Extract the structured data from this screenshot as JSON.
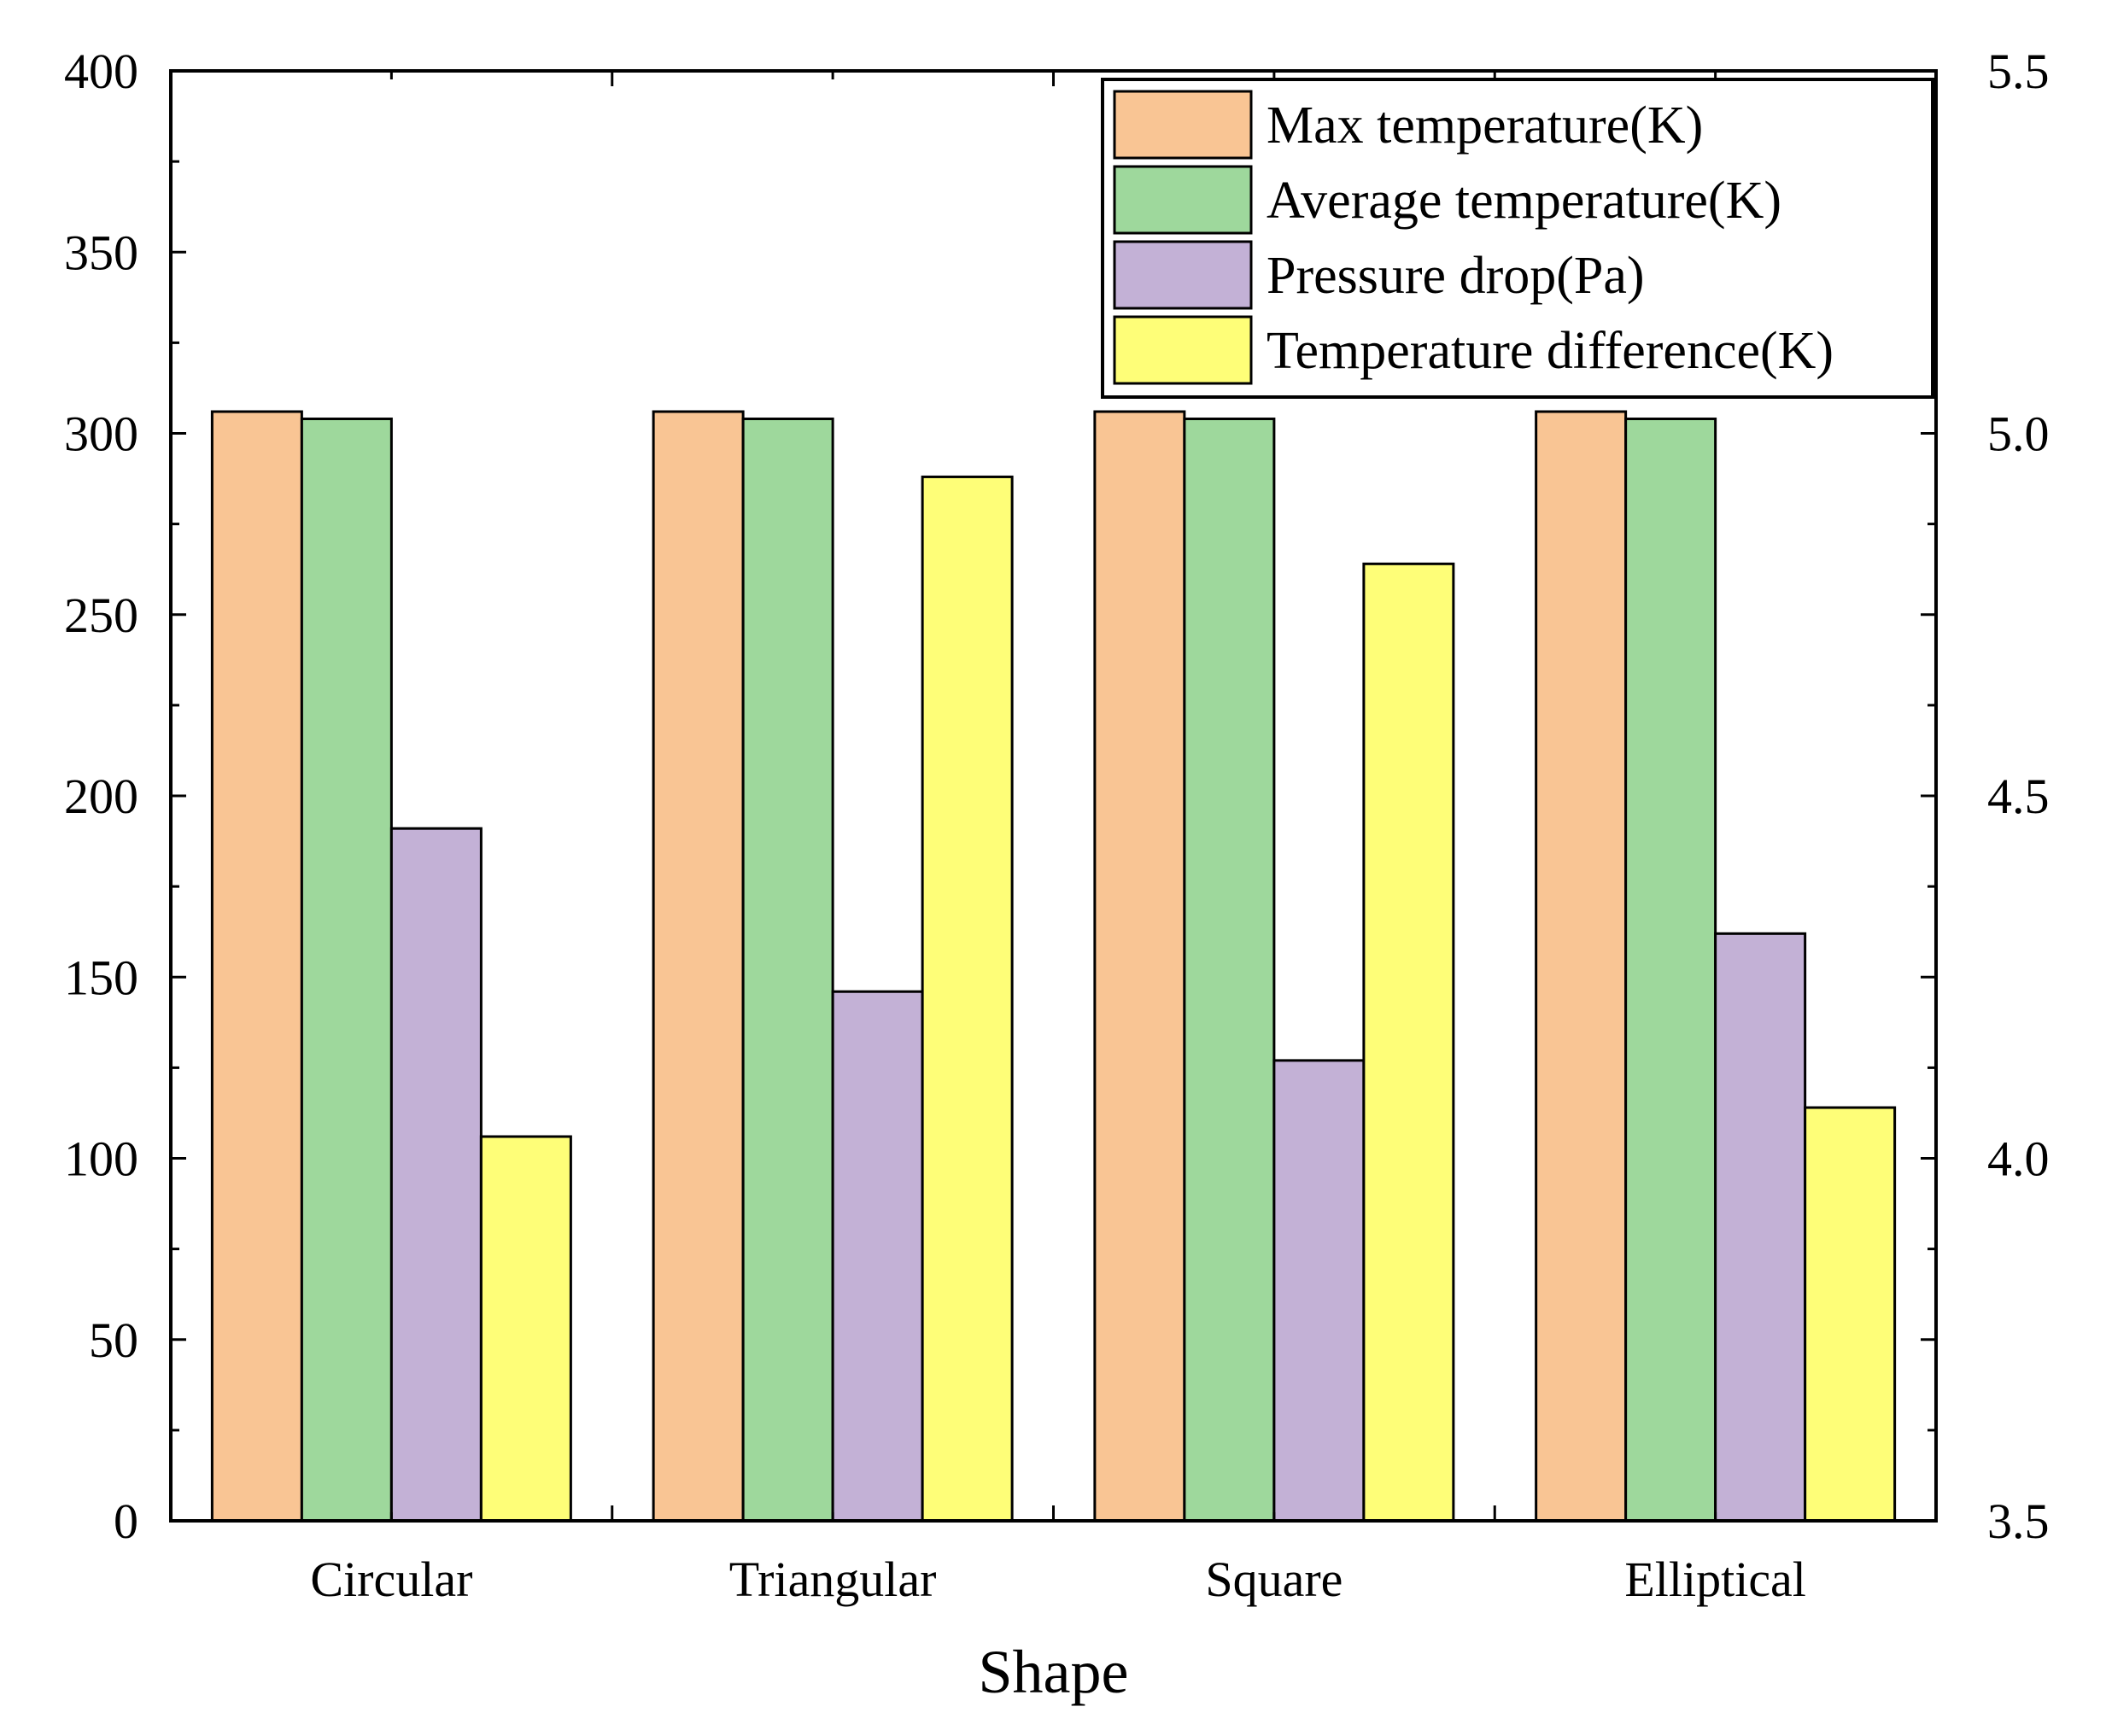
{
  "chart_data": {
    "type": "bar",
    "xlabel": "Shape",
    "categories": [
      "Circular",
      "Triangular",
      "Square",
      "Elliptical"
    ],
    "y_left": {
      "lim": [
        0,
        400
      ],
      "ticks": [
        "0",
        "50",
        "100",
        "150",
        "200",
        "250",
        "300",
        "350",
        "400"
      ]
    },
    "y_right": {
      "lim": [
        3.5,
        5.5
      ],
      "ticks": [
        "3.5",
        "4.0",
        "4.5",
        "5.0",
        "5.5"
      ]
    },
    "series": [
      {
        "name": "Max temperature(K)",
        "color": "#f9c594",
        "axis": "left",
        "values": [
          306,
          306,
          306,
          306
        ]
      },
      {
        "name": "Average temperature(K)",
        "color": "#9ed89c",
        "axis": "left",
        "values": [
          304,
          304,
          304,
          304
        ]
      },
      {
        "name": "Pressure drop(Pa)",
        "color": "#c3b1d6",
        "axis": "left",
        "values": [
          191,
          146,
          127,
          162
        ]
      },
      {
        "name": "Temperature difference(K)",
        "color": "#fefe78",
        "axis": "right",
        "values": [
          4.03,
          4.94,
          4.82,
          4.07
        ]
      }
    ],
    "legend": {
      "position": "top-right"
    },
    "grid": false
  }
}
